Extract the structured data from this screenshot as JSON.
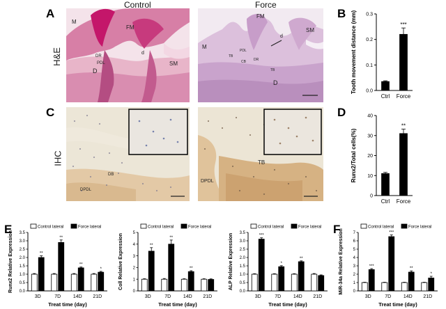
{
  "panels": {
    "A": "A",
    "B": "B",
    "C": "C",
    "D": "D",
    "E": "E",
    "F": "F"
  },
  "row_labels": {
    "he": "H&E",
    "ihc": "IHC"
  },
  "col_titles": {
    "control": "Control",
    "force": "Force"
  },
  "micro_labels": {
    "he_control": [
      "M",
      "FM",
      "DR",
      "PDL",
      "d",
      "D",
      "SM"
    ],
    "he_force": [
      "M",
      "FM",
      "d",
      "SM",
      "TB",
      "PDL",
      "CB",
      "DR",
      "TB",
      "D"
    ],
    "ihc_control": [
      "DB",
      "DPDL"
    ],
    "ihc_force": [
      "TB",
      "DPDL"
    ]
  },
  "colors": {
    "he_bg": "#e9c5d3",
    "he_force_bg": "#dcc4dc",
    "ihc_bg": "#e8e2d2",
    "bar_black": "#000000",
    "bar_white": "#ffffff"
  },
  "chart_data": [
    {
      "id": "B",
      "type": "bar",
      "categories": [
        "Ctrl",
        "Force"
      ],
      "values": [
        0.035,
        0.22
      ],
      "errors": [
        0.003,
        0.025
      ],
      "colors": [
        "#000000",
        "#000000"
      ],
      "ylabel": "Tooth movement distance (mm)",
      "ylim": [
        0,
        0.3
      ],
      "yticks": [
        "0.0",
        "0.1",
        "0.2",
        "0.3"
      ],
      "significance": [
        "",
        "***"
      ]
    },
    {
      "id": "D",
      "type": "bar",
      "categories": [
        "Ctrl",
        "Force"
      ],
      "values": [
        11,
        31
      ],
      "errors": [
        0.6,
        2.2
      ],
      "colors": [
        "#000000",
        "#000000"
      ],
      "ylabel": "Runx2/Total cells(%)",
      "ylim": [
        0,
        40
      ],
      "yticks": [
        "0",
        "10",
        "20",
        "30",
        "40"
      ],
      "significance": [
        "",
        "**"
      ]
    },
    {
      "id": "E1",
      "type": "bar",
      "categories": [
        "3D",
        "7D",
        "14D",
        "21D"
      ],
      "series": [
        {
          "name": "Control lateral",
          "values": [
            1.0,
            1.0,
            1.0,
            1.0
          ],
          "errors": [
            0.04,
            0.04,
            0.04,
            0.04
          ]
        },
        {
          "name": "Force lateral",
          "values": [
            2.0,
            2.9,
            1.38,
            1.12
          ],
          "errors": [
            0.1,
            0.15,
            0.05,
            0.05
          ]
        }
      ],
      "xlabel": "Treat time (day)",
      "ylabel": "Runx2 Relative Expression",
      "ylim": [
        0,
        3.5
      ],
      "yticks": [
        "0.0",
        "0.5",
        "1.0",
        "1.5",
        "2.0",
        "2.5",
        "3.0",
        "3.5"
      ],
      "significance": [
        "**",
        "**",
        "**",
        "*"
      ]
    },
    {
      "id": "E2",
      "type": "bar",
      "categories": [
        "3D",
        "7D",
        "14D",
        "21D"
      ],
      "series": [
        {
          "name": "Control lateral",
          "values": [
            1.0,
            1.0,
            1.0,
            1.0
          ],
          "errors": [
            0.04,
            0.06,
            0.04,
            0.04
          ]
        },
        {
          "name": "Force lateral",
          "values": [
            3.4,
            4.0,
            1.65,
            0.98
          ],
          "errors": [
            0.3,
            0.35,
            0.08,
            0.05
          ]
        }
      ],
      "xlabel": "Treat time (day)",
      "ylabel": "Coll Relative Expression",
      "ylim": [
        0,
        5
      ],
      "yticks": [
        "0",
        "1",
        "2",
        "3",
        "4",
        "5"
      ],
      "significance": [
        "**",
        "**",
        "**",
        ""
      ]
    },
    {
      "id": "E3",
      "type": "bar",
      "categories": [
        "3D",
        "7D",
        "14D",
        "21D"
      ],
      "series": [
        {
          "name": "Control lateral",
          "values": [
            1.0,
            1.0,
            1.0,
            1.0
          ],
          "errors": [
            0.03,
            0.03,
            0.03,
            0.04
          ]
        },
        {
          "name": "Force lateral",
          "values": [
            3.1,
            1.45,
            1.75,
            0.92
          ],
          "errors": [
            0.08,
            0.06,
            0.05,
            0.04
          ]
        }
      ],
      "xlabel": "Treat time (day)",
      "ylabel": "ALP Relative Expression",
      "ylim": [
        0,
        3.5
      ],
      "yticks": [
        "0.0",
        "0.5",
        "1.0",
        "1.5",
        "2.0",
        "2.5",
        "3.0",
        "3.5"
      ],
      "significance": [
        "***",
        "*",
        "**",
        ""
      ]
    },
    {
      "id": "F",
      "type": "bar",
      "categories": [
        "3D",
        "7D",
        "14D",
        "21D"
      ],
      "series": [
        {
          "name": "Control lateral",
          "values": [
            1.0,
            1.0,
            1.0,
            1.0
          ],
          "errors": [
            0.04,
            0.04,
            0.04,
            0.04
          ]
        },
        {
          "name": "Force lateral",
          "values": [
            2.55,
            6.5,
            2.25,
            1.55
          ],
          "errors": [
            0.12,
            0.2,
            0.15,
            0.2
          ]
        }
      ],
      "xlabel": "Treat time (day)",
      "ylabel": "MiR-34a Relative Expression",
      "ylim": [
        0,
        7
      ],
      "yticks": [
        "0",
        "1",
        "2",
        "3",
        "4",
        "5",
        "6",
        "7"
      ],
      "significance": [
        "***",
        "***",
        "**",
        "*"
      ]
    }
  ]
}
